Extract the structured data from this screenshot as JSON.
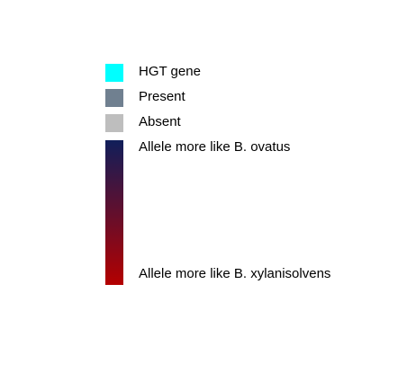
{
  "legend": {
    "items": [
      {
        "label": "HGT gene",
        "color": "#00ffff"
      },
      {
        "label": "Present",
        "color": "#708090"
      },
      {
        "label": "Absent",
        "color": "#bebebe"
      }
    ],
    "gradient": {
      "top_label": "Allele more like B. ovatus",
      "bottom_label": "Allele more like B. xylanisolvens",
      "top_color": "#101e5a",
      "bottom_color": "#b40000"
    }
  }
}
